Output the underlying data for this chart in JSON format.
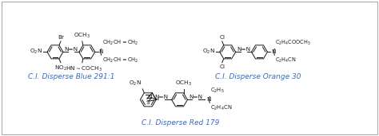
{
  "background_color": "#ffffff",
  "border_color": "#aaaaaa",
  "title_color": "#4169b0",
  "structure_color": "#1a1a1a",
  "label_blue": "C.I. Disperse Blue 291:1",
  "label_orange": "C.I. Disperse Orange 30",
  "label_red": "C.I. Disperse Red 179",
  "label_fontsize": 6.5,
  "chem_fontsize": 5.2,
  "figsize": [
    4.74,
    1.71
  ],
  "dpi": 100
}
